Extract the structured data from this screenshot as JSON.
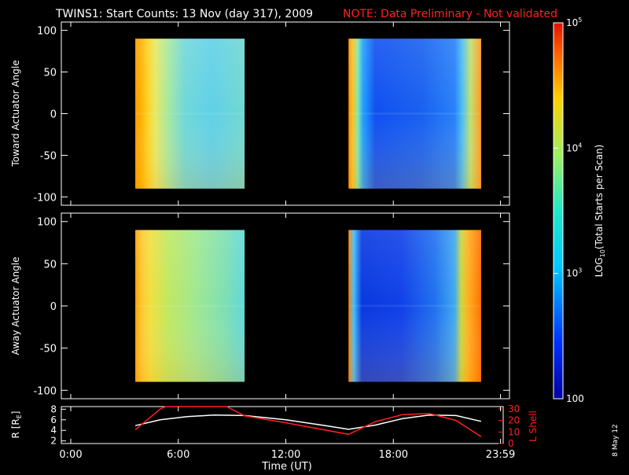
{
  "header": {
    "title": "TWINS1: Start Counts: 13 Nov (day 317), 2009",
    "note": "NOTE: Data Preliminary - Not validated"
  },
  "colorbar": {
    "label_base": "LOG",
    "label_sub": "10",
    "label_rest": "(Total Starts per Scan)",
    "ticks": [
      {
        "value": "100",
        "log": 2
      },
      {
        "value": "10",
        "sup": "3",
        "log": 3
      },
      {
        "value": "10",
        "sup": "4",
        "log": 4
      },
      {
        "value": "10",
        "sup": "5",
        "log": 5
      }
    ]
  },
  "date_stamp": "8 May 12",
  "colors": {
    "orange": "#ff8800",
    "yellow": "#f5d020",
    "cyan": "#40d0e8",
    "blue": "#1040e0",
    "white": "#ffffff",
    "red": "#ff2020"
  },
  "chart_data": [
    {
      "type": "heatmap",
      "ylabel": "Toward Actuator Angle",
      "ylim": [
        -110,
        110
      ],
      "yticks": [
        100,
        50,
        0,
        -50,
        -100
      ],
      "xlim": [
        0,
        24
      ],
      "data_blocks": [
        {
          "x_start": 3.6,
          "x_end": 9.7,
          "y_start": -90,
          "y_end": 90
        },
        {
          "x_start": 15.5,
          "x_end": 22.9,
          "y_start": -90,
          "y_end": 90
        }
      ]
    },
    {
      "type": "heatmap",
      "ylabel": "Away Actuator Angle",
      "ylim": [
        -110,
        110
      ],
      "yticks": [
        100,
        50,
        0,
        -50,
        -100
      ],
      "xlim": [
        0,
        24
      ],
      "data_blocks": [
        {
          "x_start": 3.6,
          "x_end": 9.7,
          "y_start": -90,
          "y_end": 90
        },
        {
          "x_start": 15.5,
          "x_end": 22.9,
          "y_start": -90,
          "y_end": 90
        }
      ]
    },
    {
      "type": "line",
      "xlabel": "Time (UT)",
      "xticks": [
        {
          "label": "0:00",
          "value": 0
        },
        {
          "label": "6:00",
          "value": 6
        },
        {
          "label": "12:00",
          "value": 12
        },
        {
          "label": "18:00",
          "value": 18
        },
        {
          "label": "23:59",
          "value": 23.98
        }
      ],
      "ylabel_left": "R [R",
      "ylabel_left_sub": "E",
      "ylabel_left_close": "]",
      "ylim_left": [
        1.5,
        8.5
      ],
      "yticks_left": [
        2,
        4,
        6,
        8
      ],
      "ylabel_right": "L Shell",
      "ylim_right": [
        0,
        32
      ],
      "yticks_right": [
        0,
        10,
        20,
        30
      ],
      "series": [
        {
          "axis": "left",
          "color": "#ffffff",
          "x": [
            3.6,
            5,
            6.5,
            8,
            9.7,
            12,
            14,
            15.5,
            17,
            18.5,
            20,
            21.5,
            22.9
          ],
          "y": [
            4.9,
            6.0,
            6.6,
            6.9,
            6.8,
            6.0,
            5.0,
            4.2,
            5.0,
            6.2,
            6.9,
            6.8,
            5.7
          ]
        },
        {
          "axis": "right",
          "color": "#ff2020",
          "x": [
            3.6,
            5,
            5.3,
            8.7,
            9.7,
            12,
            15.5,
            17,
            18.5,
            20,
            21.5,
            22.9
          ],
          "y": [
            12,
            30,
            32,
            32,
            24,
            18,
            8,
            19,
            25,
            26,
            20,
            6
          ]
        }
      ]
    }
  ]
}
